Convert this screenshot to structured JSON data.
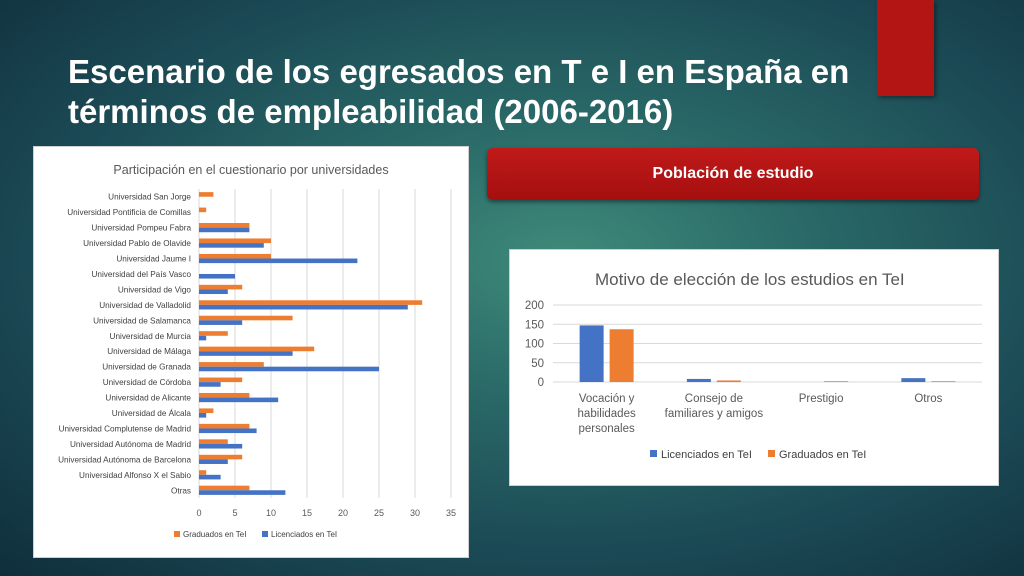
{
  "slide": {
    "title_line1": "Escenario de los egresados en T e I  en España en",
    "title_line2": "términos de empleabilidad (2006-2016)",
    "section_label": "Población de estudio"
  },
  "colors": {
    "orange": "#ed7d31",
    "blue": "#4472c4",
    "red_accent": "#b31414"
  },
  "chart_data": [
    {
      "type": "bar",
      "orientation": "horizontal",
      "title": "Participación en el cuestionario por universidades",
      "categories": [
        "Universidad San Jorge",
        "Universidad Pontificia de Comillas",
        "Universidad Pompeu Fabra",
        "Universidad Pablo de Olavide",
        "Universidad Jaume I",
        "Universidad del País Vasco",
        "Universidad de Vigo",
        "Universidad de Valladolid",
        "Universidad de Salamanca",
        "Universidad de Murcia",
        "Universidad de Málaga",
        "Universidad de Granada",
        "Universidad de Córdoba",
        "Universidad de Alicante",
        "Universidad de Álcala",
        "Universidad Complutense de Madrid",
        "Universidad Autónoma de Madrid",
        "Universidad Autónoma de Barcelona",
        "Universidad Alfonso X el Sabio",
        "Otras"
      ],
      "series": [
        {
          "name": "Graduados en TeI",
          "color": "#ed7d31",
          "values": [
            2,
            1,
            7,
            10,
            10,
            0,
            6,
            31,
            13,
            4,
            16,
            9,
            6,
            7,
            2,
            7,
            4,
            6,
            1,
            7
          ]
        },
        {
          "name": "Licenciados en TeI",
          "color": "#4472c4",
          "values": [
            0,
            0,
            7,
            9,
            22,
            5,
            4,
            29,
            6,
            1,
            13,
            25,
            3,
            11,
            1,
            8,
            6,
            4,
            3,
            12
          ]
        }
      ],
      "xlim": [
        0,
        35
      ],
      "xticks": [
        "0",
        "5",
        "10",
        "15",
        "20",
        "25",
        "30",
        "35"
      ],
      "grid": true,
      "legend": "bottom",
      "legend_entries": [
        "Graduados en TeI",
        "Licenciados en TeI"
      ]
    },
    {
      "type": "bar",
      "orientation": "vertical",
      "title": "Motivo de elección de los estudios en TeI",
      "categories": [
        [
          "Vocación y",
          "habilidades",
          "personales"
        ],
        [
          "Consejo de",
          "familiares y amigos"
        ],
        [
          "Prestigio"
        ],
        [
          "Otros"
        ]
      ],
      "series": [
        {
          "name": "Licenciados en TeI",
          "color": "#4472c4",
          "values": [
            147,
            8,
            0,
            10
          ]
        },
        {
          "name": "Graduados en TeI",
          "color": "#ed7d31",
          "values": [
            137,
            4,
            2,
            2
          ]
        }
      ],
      "ylim": [
        0,
        200
      ],
      "yticks": [
        "0",
        "50",
        "100",
        "150",
        "200"
      ],
      "grid": true,
      "legend": "bottom",
      "legend_entries": [
        "Licenciados en TeI",
        "Graduados en TeI"
      ]
    }
  ]
}
